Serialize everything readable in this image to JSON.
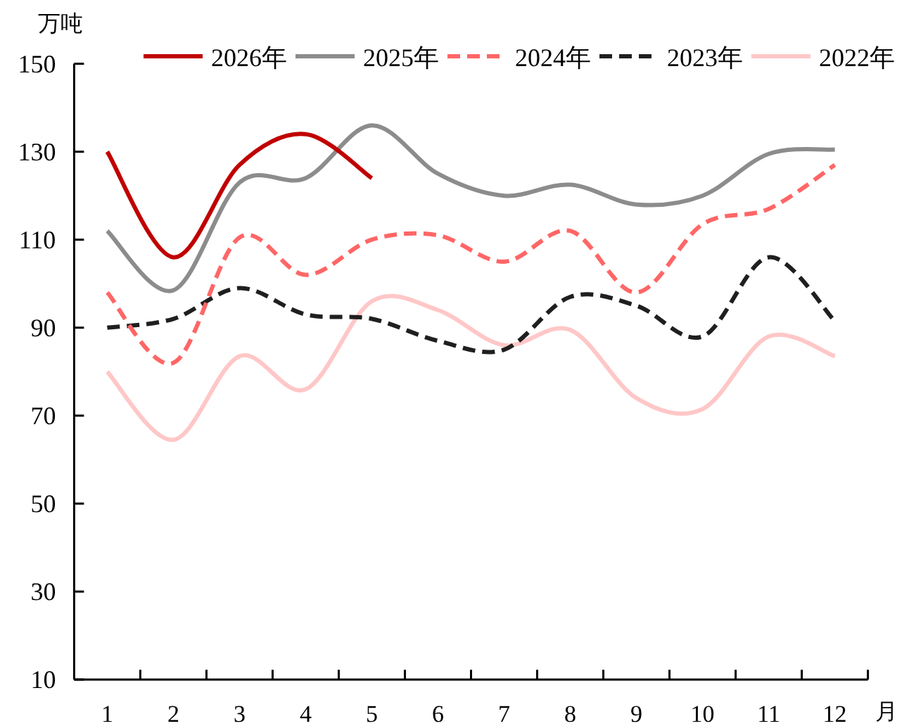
{
  "chart_data": {
    "type": "line",
    "xlabel": "月",
    "ylabel": "万吨",
    "categories": [
      "1",
      "2",
      "3",
      "4",
      "5",
      "6",
      "7",
      "8",
      "9",
      "10",
      "11",
      "12"
    ],
    "ylim": [
      10,
      150
    ],
    "yticks": [
      10,
      30,
      50,
      70,
      90,
      110,
      130,
      150
    ],
    "legend": "top",
    "series": [
      {
        "name": "2026年",
        "color": "#c00000",
        "line_style": "solid",
        "values": [
          130,
          106,
          127,
          134,
          124,
          null,
          null,
          null,
          null,
          null,
          null,
          null
        ]
      },
      {
        "name": "2025年",
        "color": "#8c8c8c",
        "line_style": "solid",
        "values": [
          112,
          98.5,
          123,
          124,
          136,
          125,
          120,
          122.5,
          118,
          120,
          129.5,
          130.5
        ]
      },
      {
        "name": "2024年",
        "color": "#ff6666",
        "line_style": "dashed",
        "values": [
          98,
          82,
          110.5,
          102,
          110,
          111,
          105,
          112,
          98,
          113.5,
          117,
          127
        ]
      },
      {
        "name": "2023年",
        "color": "#1f1f1f",
        "line_style": "dashed",
        "values": [
          90,
          92,
          99,
          93,
          92,
          87,
          85,
          97,
          95,
          88,
          106,
          91.5
        ]
      },
      {
        "name": "2022年",
        "color": "#ffc7c7",
        "line_style": "solid",
        "values": [
          80,
          64.5,
          83.5,
          76,
          96,
          94,
          86,
          89.5,
          74,
          71.5,
          88,
          83.5
        ]
      }
    ]
  }
}
